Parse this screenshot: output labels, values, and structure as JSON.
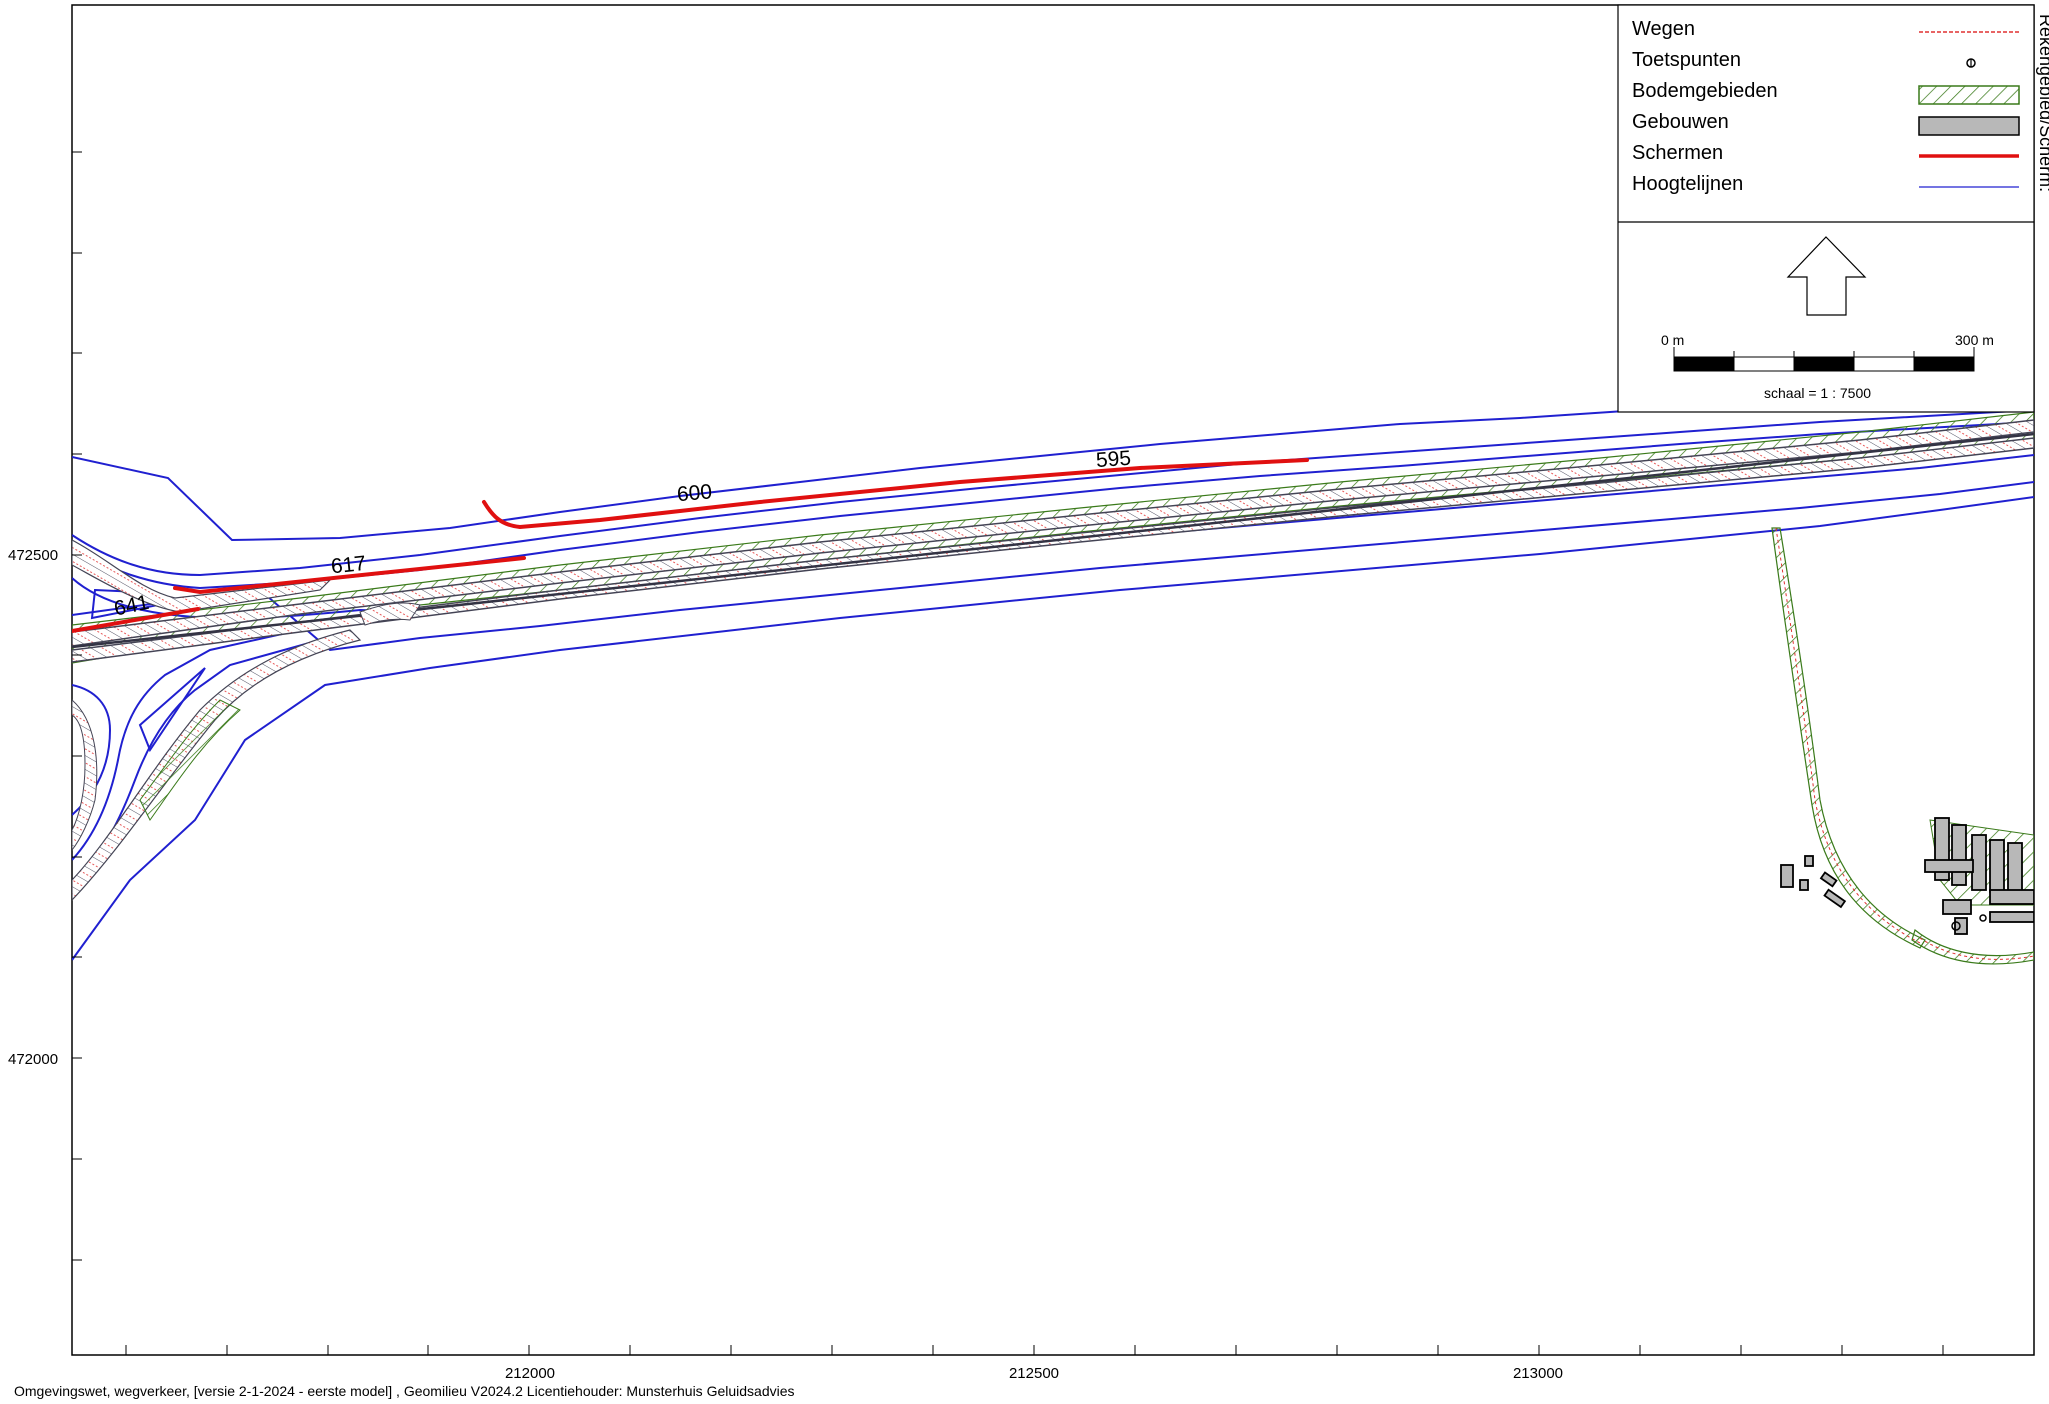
{
  "axes": {
    "x_ticks": [
      "212000",
      "212500",
      "213000"
    ],
    "y_ticks": [
      "472500",
      "472000"
    ]
  },
  "contour_labels": [
    "641",
    "617",
    "600",
    "595"
  ],
  "legend": {
    "items": [
      {
        "label": "Wegen",
        "symbol": "dashed-red-line-icon"
      },
      {
        "label": "Toetspunten",
        "symbol": "receiver-point-icon"
      },
      {
        "label": "Bodemgebieden",
        "symbol": "hatched-green-area-icon"
      },
      {
        "label": "Gebouwen",
        "symbol": "grey-building-icon"
      },
      {
        "label": "Schermen",
        "symbol": "thick-red-line-icon"
      },
      {
        "label": "Hoogtelijnen",
        "symbol": "blue-line-icon"
      }
    ],
    "north_arrow": "north-arrow-icon"
  },
  "scalebar": {
    "start_label": "0 m",
    "end_label": "300 m",
    "scale_text": "schaal = 1 : 7500"
  },
  "footer": {
    "text": "Omgevingswet, wegverkeer, [versie 2-1-2024 - eerste model] , Geomilieu V2024.2 Licentiehouder: Munsterhuis Geluidsadvies"
  },
  "side_text": "Rekengebied/Scherm:",
  "colors": {
    "contour": "#2020d0",
    "road": "#e03030",
    "screen": "#e01010",
    "ground": "#3a7a1a",
    "building": "#b8b8b8"
  }
}
